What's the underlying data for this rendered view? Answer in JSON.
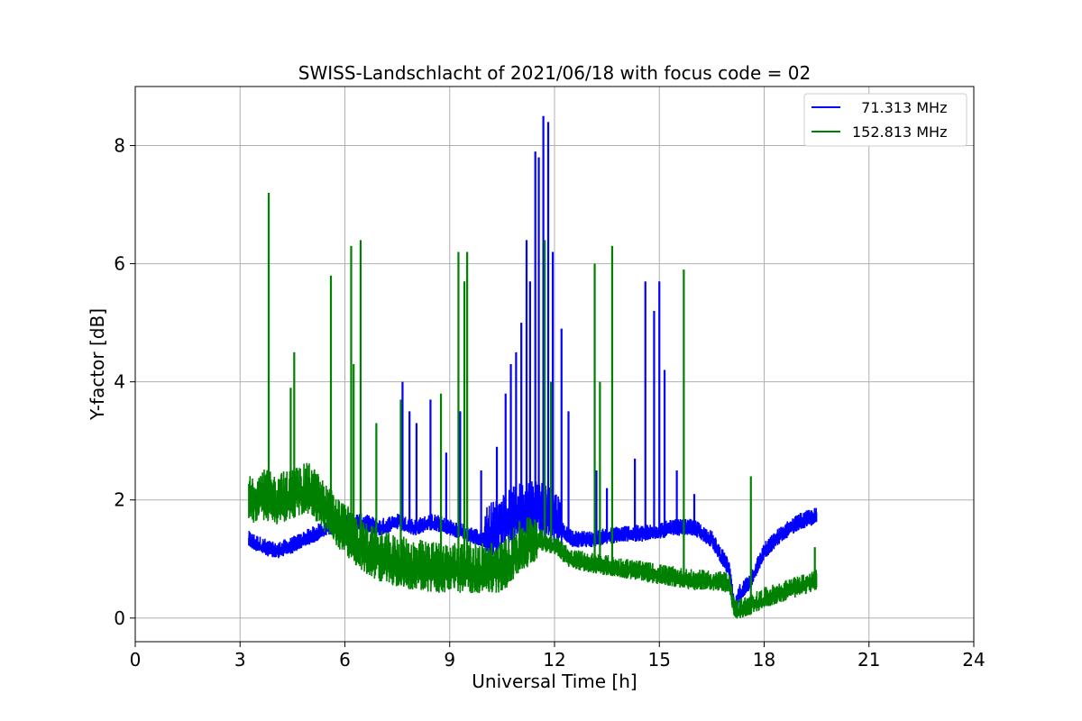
{
  "chart_data": {
    "type": "line",
    "title": "SWISS-Landschlacht of 2021/06/18 with focus code = 02",
    "xlabel": "Universal Time [h]",
    "ylabel": "Y-factor [dB]",
    "xlim": [
      0,
      24
    ],
    "ylim": [
      -0.4,
      9.0
    ],
    "xticks": [
      0,
      3,
      6,
      9,
      12,
      15,
      18,
      21,
      24
    ],
    "yticks": [
      0,
      2,
      4,
      6,
      8
    ],
    "grid": true,
    "legend_position": "top-right",
    "series": [
      {
        "name": "  71.313 MHz",
        "color": "#0000ff",
        "baseline": [
          [
            3.25,
            1.3
          ],
          [
            3.6,
            1.2
          ],
          [
            4.0,
            1.1
          ],
          [
            4.5,
            1.2
          ],
          [
            5.0,
            1.35
          ],
          [
            5.5,
            1.5
          ],
          [
            6.0,
            1.6
          ],
          [
            6.5,
            1.6
          ],
          [
            7.0,
            1.5
          ],
          [
            7.5,
            1.6
          ],
          [
            8.0,
            1.5
          ],
          [
            8.5,
            1.6
          ],
          [
            9.0,
            1.5
          ],
          [
            9.5,
            1.4
          ],
          [
            10.0,
            1.3
          ],
          [
            10.5,
            1.5
          ],
          [
            11.0,
            1.7
          ],
          [
            11.5,
            1.8
          ],
          [
            12.0,
            1.6
          ],
          [
            12.5,
            1.3
          ],
          [
            13.0,
            1.3
          ],
          [
            13.5,
            1.35
          ],
          [
            14.0,
            1.4
          ],
          [
            14.5,
            1.4
          ],
          [
            15.0,
            1.45
          ],
          [
            15.5,
            1.5
          ],
          [
            16.0,
            1.5
          ],
          [
            16.5,
            1.3
          ],
          [
            17.0,
            0.8
          ],
          [
            17.15,
            0.1
          ],
          [
            17.3,
            0.4
          ],
          [
            17.6,
            0.6
          ],
          [
            18.0,
            1.1
          ],
          [
            18.5,
            1.4
          ],
          [
            19.0,
            1.6
          ],
          [
            19.5,
            1.7
          ]
        ],
        "spikes": [
          [
            7.65,
            4.0
          ],
          [
            7.85,
            3.5
          ],
          [
            8.05,
            3.3
          ],
          [
            8.45,
            3.7
          ],
          [
            8.9,
            2.8
          ],
          [
            9.3,
            3.5
          ],
          [
            9.9,
            2.5
          ],
          [
            10.35,
            2.9
          ],
          [
            10.6,
            3.8
          ],
          [
            10.75,
            4.3
          ],
          [
            10.9,
            4.5
          ],
          [
            11.05,
            5.0
          ],
          [
            11.2,
            6.4
          ],
          [
            11.3,
            5.7
          ],
          [
            11.45,
            7.9
          ],
          [
            11.55,
            7.8
          ],
          [
            11.68,
            8.5
          ],
          [
            11.82,
            8.4
          ],
          [
            11.95,
            6.2
          ],
          [
            12.2,
            4.9
          ],
          [
            12.4,
            3.5
          ],
          [
            13.2,
            2.5
          ],
          [
            13.5,
            2.2
          ],
          [
            14.3,
            2.7
          ],
          [
            14.6,
            5.7
          ],
          [
            14.85,
            5.2
          ],
          [
            15.0,
            5.7
          ],
          [
            15.15,
            4.2
          ],
          [
            15.5,
            2.5
          ],
          [
            16.0,
            2.1
          ]
        ]
      },
      {
        "name": "152.813 MHz",
        "color": "#008000",
        "baseline": [
          [
            3.25,
            1.9
          ],
          [
            3.6,
            2.0
          ],
          [
            4.0,
            1.9
          ],
          [
            4.5,
            2.0
          ],
          [
            5.0,
            2.1
          ],
          [
            5.5,
            1.7
          ],
          [
            6.0,
            1.4
          ],
          [
            6.5,
            1.1
          ],
          [
            7.0,
            0.95
          ],
          [
            7.5,
            0.85
          ],
          [
            8.0,
            0.8
          ],
          [
            8.5,
            0.75
          ],
          [
            9.0,
            0.75
          ],
          [
            9.5,
            0.75
          ],
          [
            10.0,
            0.75
          ],
          [
            10.5,
            0.75
          ],
          [
            11.0,
            1.1
          ],
          [
            11.5,
            1.3
          ],
          [
            12.0,
            1.2
          ],
          [
            12.5,
            0.95
          ],
          [
            13.0,
            0.9
          ],
          [
            13.5,
            0.85
          ],
          [
            14.0,
            0.8
          ],
          [
            14.5,
            0.75
          ],
          [
            15.0,
            0.7
          ],
          [
            15.5,
            0.65
          ],
          [
            16.0,
            0.6
          ],
          [
            16.5,
            0.6
          ],
          [
            17.0,
            0.55
          ],
          [
            17.15,
            0.1
          ],
          [
            17.5,
            0.15
          ],
          [
            18.0,
            0.3
          ],
          [
            18.5,
            0.4
          ],
          [
            19.0,
            0.5
          ],
          [
            19.5,
            0.6
          ]
        ],
        "spikes": [
          [
            3.82,
            7.2
          ],
          [
            4.45,
            3.9
          ],
          [
            4.55,
            4.5
          ],
          [
            5.6,
            5.8
          ],
          [
            6.18,
            6.3
          ],
          [
            6.25,
            4.3
          ],
          [
            6.45,
            6.4
          ],
          [
            6.9,
            3.3
          ],
          [
            7.6,
            3.7
          ],
          [
            8.75,
            3.8
          ],
          [
            9.25,
            6.2
          ],
          [
            9.42,
            5.7
          ],
          [
            9.5,
            6.2
          ],
          [
            11.72,
            6.4
          ],
          [
            11.9,
            4.0
          ],
          [
            13.15,
            6.0
          ],
          [
            13.3,
            4.0
          ],
          [
            13.65,
            6.3
          ],
          [
            15.7,
            5.9
          ],
          [
            17.62,
            2.4
          ],
          [
            19.45,
            1.2
          ]
        ]
      }
    ]
  }
}
